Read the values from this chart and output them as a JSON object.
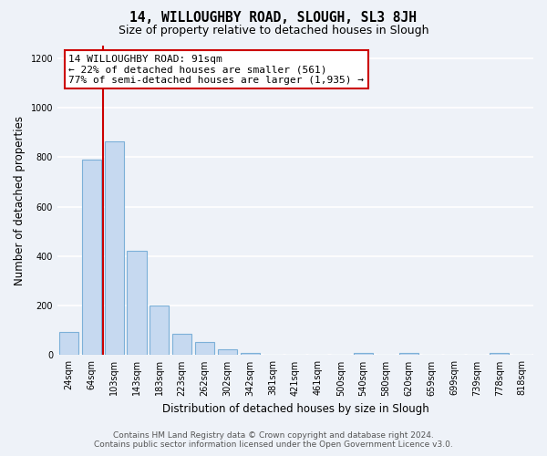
{
  "title": "14, WILLOUGHBY ROAD, SLOUGH, SL3 8JH",
  "subtitle": "Size of property relative to detached houses in Slough",
  "xlabel": "Distribution of detached houses by size in Slough",
  "ylabel": "Number of detached properties",
  "categories": [
    "24sqm",
    "64sqm",
    "103sqm",
    "143sqm",
    "183sqm",
    "223sqm",
    "262sqm",
    "302sqm",
    "342sqm",
    "381sqm",
    "421sqm",
    "461sqm",
    "500sqm",
    "540sqm",
    "580sqm",
    "620sqm",
    "659sqm",
    "699sqm",
    "739sqm",
    "778sqm",
    "818sqm"
  ],
  "values": [
    95,
    790,
    865,
    420,
    200,
    87,
    53,
    22,
    8,
    3,
    0,
    0,
    0,
    10,
    0,
    10,
    0,
    0,
    0,
    10,
    0
  ],
  "bar_color": "#c6d9f0",
  "bar_edge_color": "#7cb0d8",
  "vline_x": 1.5,
  "vline_color": "#cc0000",
  "annotation_text": "14 WILLOUGHBY ROAD: 91sqm\n← 22% of detached houses are smaller (561)\n77% of semi-detached houses are larger (1,935) →",
  "annotation_box_color": "#ffffff",
  "annotation_box_edge": "#cc0000",
  "ylim": [
    0,
    1250
  ],
  "yticks": [
    0,
    200,
    400,
    600,
    800,
    1000,
    1200
  ],
  "footer_line1": "Contains HM Land Registry data © Crown copyright and database right 2024.",
  "footer_line2": "Contains public sector information licensed under the Open Government Licence v3.0.",
  "background_color": "#eef2f8",
  "grid_color": "#ffffff",
  "title_fontsize": 10.5,
  "subtitle_fontsize": 9,
  "axis_label_fontsize": 8.5,
  "tick_fontsize": 7,
  "annotation_fontsize": 8,
  "footer_fontsize": 6.5
}
